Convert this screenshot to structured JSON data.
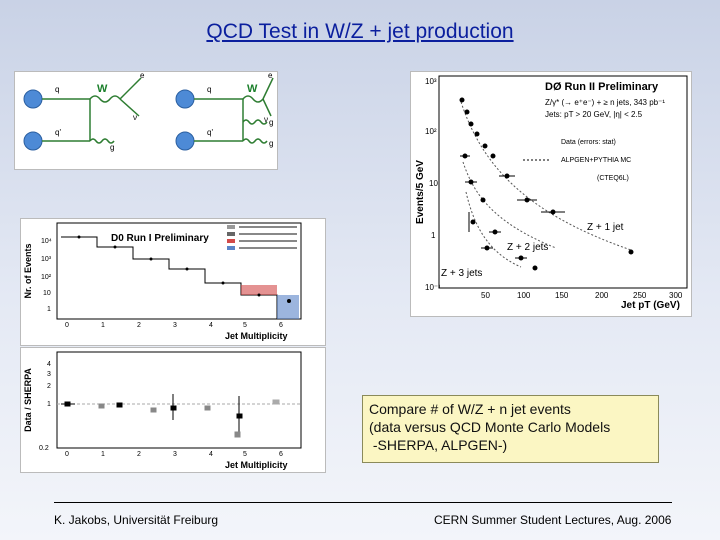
{
  "title": "QCD Test in W/Z + jet production",
  "feynman": {
    "left": {
      "q": "q",
      "qbar": "q'",
      "W": "W",
      "e": "e",
      "nu": "ν",
      "g": "g"
    },
    "right": {
      "q": "q",
      "qbar": "q'",
      "W": "W",
      "e": "e",
      "nu": "ν",
      "g1": "g",
      "g2": "g"
    }
  },
  "run2_plot": {
    "title": "DØ Run II Preliminary",
    "process": "Z/γ* (→ e⁺e⁻) + ≥ n jets, 343 pb⁻¹",
    "cuts": "Jets: pT > 20 GeV, |η| < 2.5",
    "legend_data": "Data (errors: stat)",
    "legend_mc": "ALPGEN+PYTHIA MC",
    "legend_pdf": "(CTEQ6L)",
    "ylabel": "Events/5 GeV",
    "xlabel": "Jet pT (GeV)",
    "y_ticks": [
      "10³",
      "10²",
      "10",
      "1",
      "10⁻¹"
    ],
    "x_ticks": [
      "50",
      "100",
      "150",
      "200",
      "250",
      "300"
    ],
    "label_1jet": "Z + 1 jet",
    "label_2jet": "Z + 2 jets",
    "label_3jet": "Z + 3 jets"
  },
  "run1_plot": {
    "title": "D0 Run I Preliminary",
    "ylabel": "Nr. of Events",
    "xlabel": "Jet Multiplicity",
    "y_ticks": [
      "10⁴",
      "10³",
      "10²",
      "10",
      "1"
    ],
    "x_ticks": [
      "0",
      "1",
      "2",
      "3",
      "4",
      "5",
      "6"
    ]
  },
  "ratio_plot": {
    "ylabel": "Data / SHERPA",
    "xlabel": "Jet Multiplicity",
    "y_ticks": [
      "4",
      "3",
      "2",
      "1",
      "0.2"
    ],
    "x_ticks": [
      "0",
      "1",
      "2",
      "3",
      "4",
      "5",
      "6"
    ]
  },
  "compare_box": {
    "line1": "Compare # of W/Z + n jet events",
    "line2": "(data versus QCD Monte Carlo Models",
    "line3": " -SHERPA, ALPGEN-)"
  },
  "footer": {
    "left": "K. Jakobs, Universität Freiburg",
    "right": "CERN Summer Student Lectures,  Aug.  2006"
  },
  "colors": {
    "title": "#0b1f9e",
    "box": "#fbf6c3",
    "diagram_line": "#2e7d32",
    "quark": "#3a78c8"
  }
}
